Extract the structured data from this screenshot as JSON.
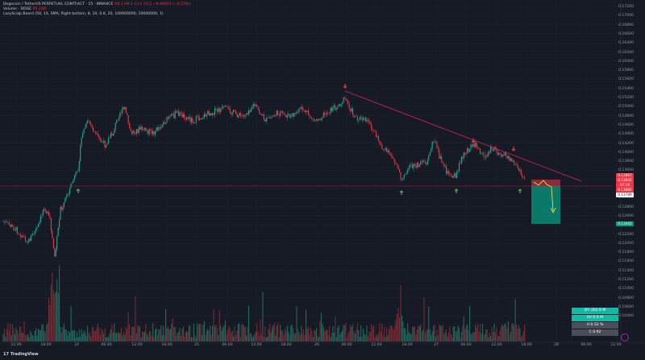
{
  "header": {
    "symbol_line": "Dogecoin / TetherUS PERPETUAL CONTRACT · 15 · BINANCE",
    "ohlc": "O0.1 H0.1 L0.1 C0.1",
    "change": "−0.00021 (−0.15%)",
    "volume_line": "Volume · DOGE",
    "volume_value": "95.25M",
    "indicator_line": "LazyScalp Board (50, 14, SMA, Right bottom, 8, 10, 0.8, 20, 100000000, 10000000, 1)"
  },
  "y_axis_labels": [
    "0.17200",
    "0.17000",
    "0.16800",
    "0.16600",
    "0.16400",
    "0.16200",
    "0.16000",
    "0.15800",
    "0.15600",
    "0.15400",
    "0.15200",
    "0.15000",
    "0.14800",
    "0.14600",
    "0.14400",
    "0.14200",
    "0.14000",
    "0.13800",
    "0.13600",
    "0.13400",
    "0.13200",
    "0.13000",
    "0.12800",
    "0.12600",
    "0.12400",
    "0.12200",
    "0.12000",
    "0.11800",
    "0.11600",
    "0.11400",
    "0.11200",
    "0.11000",
    "0.10800",
    "0.10600",
    "0.10400"
  ],
  "x_axis_labels": [
    "12:00",
    "18:00",
    "24",
    "06:00",
    "12:00",
    "18:00",
    "25",
    "06:00",
    "12:00",
    "18:00",
    "26",
    "06:00",
    "12:00",
    "18:00",
    "27",
    "06:00",
    "12:00",
    "18:00",
    "28",
    "06:00",
    "12:00"
  ],
  "price_tags": [
    {
      "text": "0.13867",
      "color": "#f23645"
    },
    {
      "text": "0.13842",
      "color": "#f23645"
    },
    {
      "text": "07:16",
      "color": "#f23645"
    },
    {
      "text": "0.13882",
      "color": "#f23645"
    },
    {
      "text": "0.13789",
      "color": "#ffffff"
    },
    {
      "text": "0.13442",
      "color": "#089981"
    }
  ],
  "legend": {
    "line1": "DV 302.9 M",
    "line2": "AV 0.9 M",
    "line3": "H 0.52 %",
    "line4": "C 0.92"
  },
  "logo": {
    "text": "TradingView",
    "mark": "17"
  },
  "colors": {
    "up": "#22ab94",
    "down": "#f23645",
    "trendline": "#e91e63",
    "short_risk": "#f23645",
    "short_target": "#089981",
    "arrow_down": "#f23645",
    "arrow_up": "#4caf50"
  }
}
